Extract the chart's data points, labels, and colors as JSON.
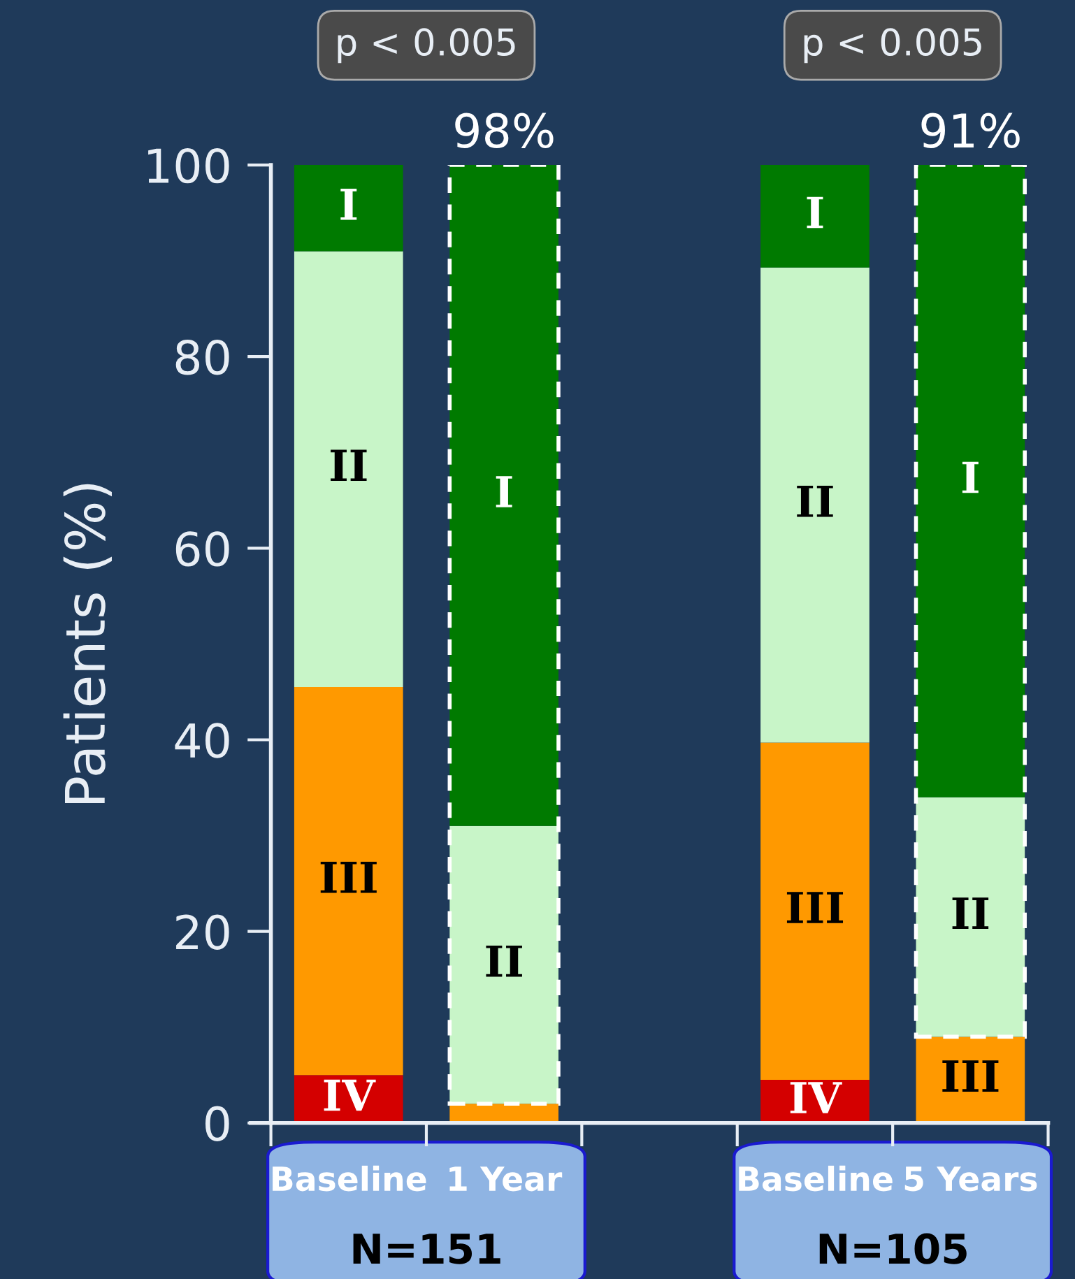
{
  "chart_data": {
    "type": "bar",
    "stacked": true,
    "categories": [
      "Baseline",
      "1 Year",
      null,
      "Baseline",
      "5 Years"
    ],
    "ylabel": "Patients (%)",
    "ylim": [
      0,
      100
    ],
    "yticks": [
      0,
      20,
      40,
      60,
      80,
      100
    ],
    "grid": false,
    "legend": false,
    "series": [
      {
        "name": "IV",
        "color": "#d40000",
        "values": [
          5,
          0,
          null,
          4.5,
          0
        ]
      },
      {
        "name": "III",
        "color": "#ff9900",
        "values": [
          40.5,
          2,
          null,
          35.2,
          9
        ]
      },
      {
        "name": "II",
        "color": "#c8f5c8",
        "values": [
          45.5,
          29,
          null,
          49.6,
          25
        ]
      },
      {
        "name": "I",
        "color": "#007a00",
        "values": [
          9,
          69,
          null,
          10.7,
          66
        ]
      }
    ],
    "annotations": [
      "p < 0.005",
      "p < 0.005",
      {
        "text": "98%",
        "x": "1 Year",
        "y": 100
      },
      {
        "text": "91%",
        "x": "5 Years",
        "y": 100
      },
      "N=151",
      "N=105"
    ]
  }
}
